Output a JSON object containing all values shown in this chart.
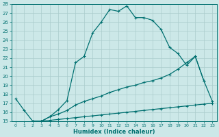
{
  "xlabel": "Humidex (Indice chaleur)",
  "ylabel": "",
  "bg_color": "#cce8e8",
  "line_color": "#007070",
  "grid_color": "#aacccc",
  "xlim": [
    -0.5,
    23.5
  ],
  "ylim": [
    15,
    28
  ],
  "xticks": [
    0,
    1,
    2,
    3,
    4,
    5,
    6,
    7,
    8,
    9,
    10,
    11,
    12,
    13,
    14,
    15,
    16,
    17,
    18,
    19,
    20,
    21,
    22,
    23
  ],
  "yticks": [
    15,
    16,
    17,
    18,
    19,
    20,
    21,
    22,
    23,
    24,
    25,
    26,
    27,
    28
  ],
  "curve1_x": [
    0,
    1,
    2,
    3,
    4,
    5,
    6,
    7,
    8,
    9,
    10,
    11,
    12,
    13,
    14,
    15,
    16,
    17,
    18,
    19,
    20,
    21,
    22,
    23
  ],
  "curve1_y": [
    17.5,
    16.2,
    15.0,
    15.0,
    15.5,
    16.3,
    17.3,
    21.5,
    22.2,
    24.8,
    26.0,
    27.4,
    27.2,
    27.8,
    26.5,
    26.5,
    26.2,
    25.2,
    23.2,
    22.5,
    21.2,
    22.2,
    19.5,
    17.2
  ],
  "curve2_x": [
    2,
    3,
    4,
    5,
    6,
    7,
    8,
    9,
    10,
    11,
    12,
    13,
    14,
    15,
    16,
    17,
    18,
    19,
    20,
    21,
    22
  ],
  "curve2_y": [
    15.0,
    15.0,
    15.5,
    15.8,
    16.2,
    16.8,
    17.2,
    17.5,
    17.8,
    18.2,
    18.5,
    18.8,
    19.0,
    19.3,
    19.5,
    19.8,
    20.2,
    20.8,
    21.5,
    22.2,
    19.5
  ],
  "curve3_x": [
    2,
    3,
    4,
    5,
    6,
    7,
    8,
    9,
    10,
    11,
    12,
    13,
    14,
    15,
    16,
    17,
    18,
    19,
    20,
    21,
    22,
    23
  ],
  "curve3_y": [
    15.0,
    15.0,
    15.1,
    15.2,
    15.3,
    15.4,
    15.5,
    15.6,
    15.7,
    15.8,
    15.9,
    16.0,
    16.1,
    16.2,
    16.3,
    16.4,
    16.5,
    16.6,
    16.7,
    16.8,
    16.9,
    17.0
  ]
}
